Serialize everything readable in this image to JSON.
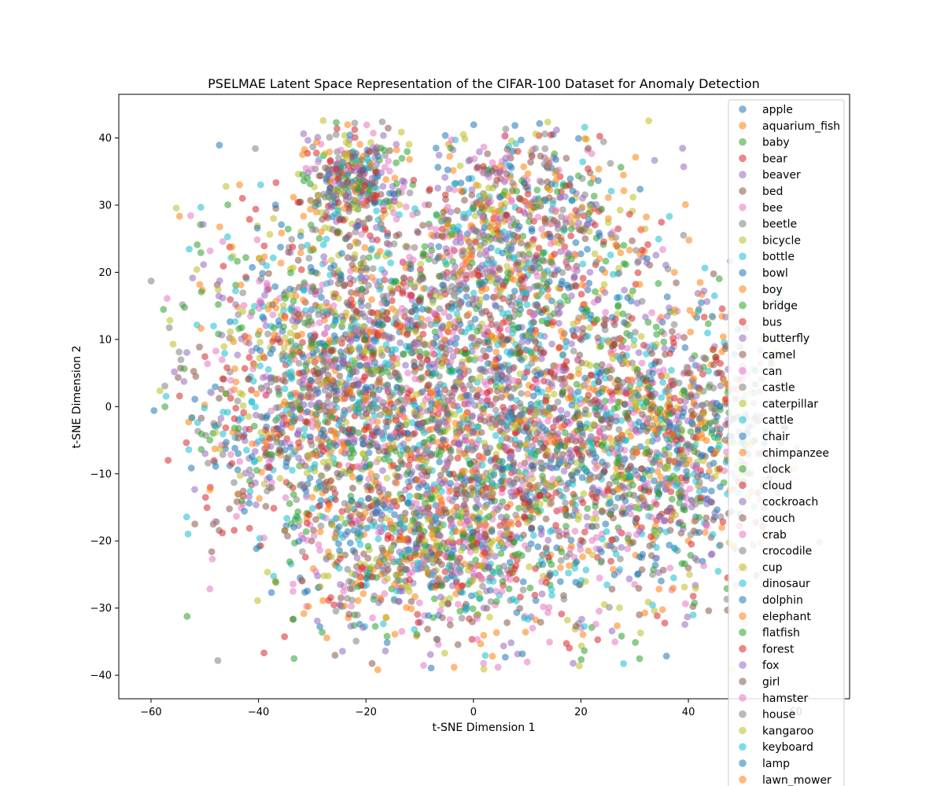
{
  "chart_data": {
    "type": "scatter",
    "title": "PSELMAE Latent Space Representation of the CIFAR-100 Dataset for Anomaly Detection",
    "xlabel": "t-SNE Dimension 1",
    "ylabel": "t-SNE Dimension 2",
    "xlim": [
      -66,
      70
    ],
    "ylim": [
      -43.5,
      46.5
    ],
    "xticks": [
      -60,
      -40,
      -20,
      0,
      20,
      40,
      60
    ],
    "yticks": [
      -40,
      -30,
      -20,
      -10,
      0,
      10,
      20,
      30,
      40
    ],
    "xtick_labels": [
      "−60",
      "−40",
      "−20",
      "0",
      "20",
      "40",
      "60"
    ],
    "ytick_labels": [
      "−40",
      "−30",
      "−20",
      "−10",
      "0",
      "10",
      "20",
      "30",
      "40"
    ],
    "grid": false,
    "legend_position": "upper right",
    "marker_alpha": 0.55,
    "palette": [
      "#1f77b4",
      "#ff7f0e",
      "#2ca02c",
      "#d62728",
      "#9467bd",
      "#8c564b",
      "#e377c2",
      "#7f7f7f",
      "#bcbd22",
      "#17becf"
    ],
    "series": [
      {
        "name": "apple",
        "color": "#1f77b4"
      },
      {
        "name": "aquarium_fish",
        "color": "#ff7f0e"
      },
      {
        "name": "baby",
        "color": "#2ca02c"
      },
      {
        "name": "bear",
        "color": "#d62728"
      },
      {
        "name": "beaver",
        "color": "#9467bd"
      },
      {
        "name": "bed",
        "color": "#8c564b"
      },
      {
        "name": "bee",
        "color": "#e377c2"
      },
      {
        "name": "beetle",
        "color": "#7f7f7f"
      },
      {
        "name": "bicycle",
        "color": "#bcbd22"
      },
      {
        "name": "bottle",
        "color": "#17becf"
      },
      {
        "name": "bowl",
        "color": "#1f77b4"
      },
      {
        "name": "boy",
        "color": "#ff7f0e"
      },
      {
        "name": "bridge",
        "color": "#2ca02c"
      },
      {
        "name": "bus",
        "color": "#d62728"
      },
      {
        "name": "butterfly",
        "color": "#9467bd"
      },
      {
        "name": "camel",
        "color": "#8c564b"
      },
      {
        "name": "can",
        "color": "#e377c2"
      },
      {
        "name": "castle",
        "color": "#7f7f7f"
      },
      {
        "name": "caterpillar",
        "color": "#bcbd22"
      },
      {
        "name": "cattle",
        "color": "#17becf"
      },
      {
        "name": "chair",
        "color": "#1f77b4"
      },
      {
        "name": "chimpanzee",
        "color": "#ff7f0e"
      },
      {
        "name": "clock",
        "color": "#2ca02c"
      },
      {
        "name": "cloud",
        "color": "#d62728"
      },
      {
        "name": "cockroach",
        "color": "#9467bd"
      },
      {
        "name": "couch",
        "color": "#8c564b"
      },
      {
        "name": "crab",
        "color": "#e377c2"
      },
      {
        "name": "crocodile",
        "color": "#7f7f7f"
      },
      {
        "name": "cup",
        "color": "#bcbd22"
      },
      {
        "name": "dinosaur",
        "color": "#17becf"
      },
      {
        "name": "dolphin",
        "color": "#1f77b4"
      },
      {
        "name": "elephant",
        "color": "#ff7f0e"
      },
      {
        "name": "flatfish",
        "color": "#2ca02c"
      },
      {
        "name": "forest",
        "color": "#d62728"
      },
      {
        "name": "fox",
        "color": "#9467bd"
      },
      {
        "name": "girl",
        "color": "#8c564b"
      },
      {
        "name": "hamster",
        "color": "#e377c2"
      },
      {
        "name": "house",
        "color": "#7f7f7f"
      },
      {
        "name": "kangaroo",
        "color": "#bcbd22"
      },
      {
        "name": "keyboard",
        "color": "#17becf"
      },
      {
        "name": "lamp",
        "color": "#1f77b4"
      },
      {
        "name": "lawn_mower",
        "color": "#ff7f0e"
      }
    ],
    "clusters": [
      {
        "cx": -25,
        "cy": 4,
        "sx": 14,
        "sy": 14,
        "w": 0.3
      },
      {
        "cx": 12,
        "cy": -4,
        "sx": 17,
        "sy": 14,
        "w": 0.34
      },
      {
        "cx": 8,
        "cy": 26,
        "sx": 10,
        "sy": 8,
        "w": 0.12
      },
      {
        "cx": -22,
        "cy": 34,
        "sx": 4,
        "sy": 4,
        "w": 0.05
      },
      {
        "cx": 38,
        "cy": -5,
        "sx": 9,
        "sy": 10,
        "w": 0.1
      },
      {
        "cx": -8,
        "cy": -22,
        "sx": 12,
        "sy": 6,
        "w": 0.09
      }
    ]
  }
}
